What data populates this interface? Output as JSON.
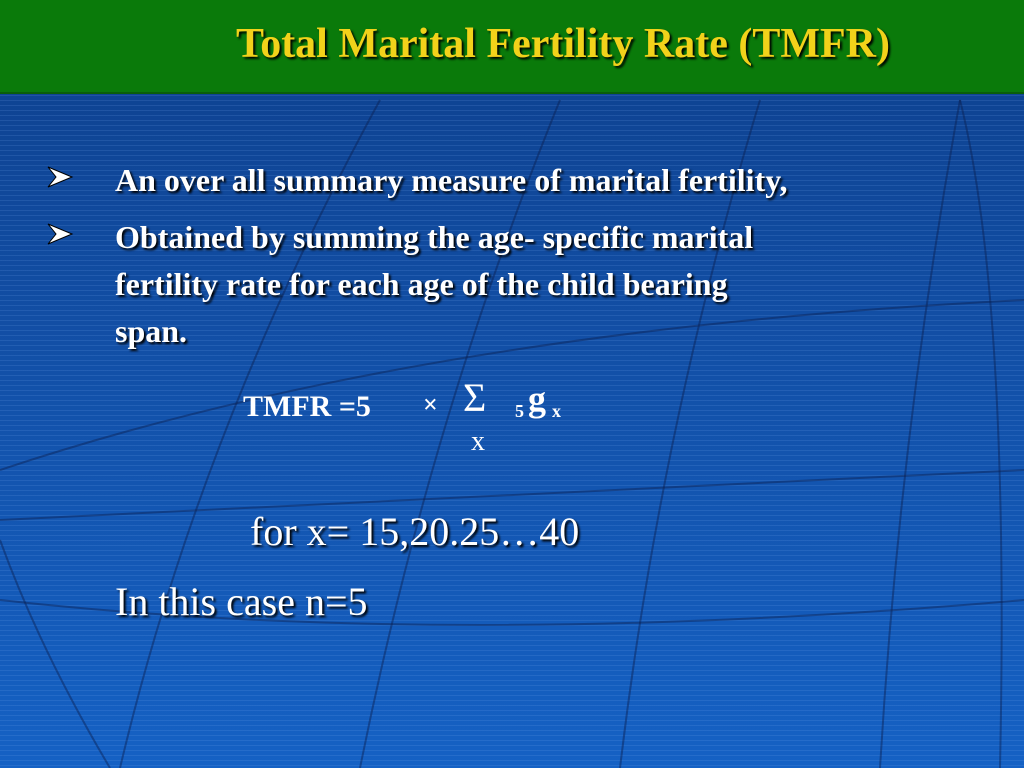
{
  "title": "Total Marital Fertility Rate (TMFR)",
  "bullets": [
    {
      "icon": "arrowhead-bullet-icon",
      "lines": [
        "An over all summary measure of marital fertility,"
      ]
    },
    {
      "icon": "arrowhead-bullet-icon",
      "lines": [
        "Obtained by summing the age- specific marital",
        "fertility rate for each age of the child bearing",
        "span."
      ]
    }
  ],
  "formula": {
    "lhs": "TMFR =5",
    "times": "×",
    "sigma": "Σ",
    "sigma_sub": "x",
    "prefix_sub": "5",
    "term": "g",
    "term_sub": "x"
  },
  "range_text": "for x= 15,20.25…40",
  "case_text": "In this case n=5",
  "colors": {
    "title_bar": "#0a7a0a",
    "title_text": "#f2d21a",
    "background": "#124fa6",
    "text": "#ffffff"
  }
}
